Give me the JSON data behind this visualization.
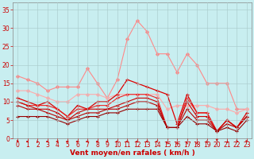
{
  "x": [
    0,
    1,
    2,
    3,
    4,
    5,
    6,
    7,
    8,
    9,
    10,
    11,
    12,
    13,
    14,
    15,
    16,
    17,
    18,
    19,
    20,
    21,
    22,
    23
  ],
  "series": [
    {
      "color": "#ff8888",
      "marker": "D",
      "markersize": 2.0,
      "linewidth": 0.8,
      "y": [
        17,
        16,
        15,
        13,
        14,
        14,
        14,
        19,
        15,
        11,
        16,
        27,
        32,
        29,
        23,
        23,
        18,
        23,
        20,
        15,
        15,
        15,
        8,
        8
      ]
    },
    {
      "color": "#ffaaaa",
      "marker": "D",
      "markersize": 2.0,
      "linewidth": 0.8,
      "y": [
        13,
        13,
        12,
        11,
        10,
        10,
        12,
        12,
        12,
        11,
        12,
        12,
        12,
        12,
        12,
        8,
        9,
        9,
        9,
        9,
        8,
        8,
        7,
        8
      ]
    },
    {
      "color": "#dd0000",
      "marker": "+",
      "markersize": 3.0,
      "linewidth": 0.9,
      "y": [
        11,
        10,
        9,
        10,
        8,
        6,
        9,
        8,
        10,
        10,
        12,
        16,
        15,
        14,
        13,
        12,
        4,
        12,
        7,
        7,
        2,
        5,
        3,
        7
      ]
    },
    {
      "color": "#ee2222",
      "marker": "+",
      "markersize": 3.0,
      "linewidth": 0.8,
      "y": [
        10,
        9,
        9,
        9,
        8,
        6,
        8,
        8,
        9,
        9,
        11,
        12,
        12,
        12,
        11,
        3,
        3,
        11,
        7,
        7,
        2,
        5,
        3,
        6
      ]
    },
    {
      "color": "#cc0000",
      "marker": "+",
      "markersize": 3.0,
      "linewidth": 0.8,
      "y": [
        10,
        9,
        8,
        8,
        7,
        5,
        7,
        8,
        8,
        8,
        9,
        10,
        11,
        11,
        10,
        3,
        3,
        10,
        6,
        6,
        2,
        5,
        3,
        6
      ]
    },
    {
      "color": "#bb0000",
      "marker": "+",
      "markersize": 3.0,
      "linewidth": 0.8,
      "y": [
        9,
        8,
        8,
        7,
        6,
        5,
        6,
        7,
        7,
        8,
        8,
        9,
        10,
        10,
        9,
        3,
        3,
        8,
        5,
        5,
        2,
        4,
        3,
        6
      ]
    },
    {
      "color": "#990000",
      "marker": "+",
      "markersize": 3.0,
      "linewidth": 0.8,
      "y": [
        6,
        6,
        6,
        6,
        5,
        4,
        5,
        6,
        6,
        7,
        7,
        8,
        8,
        8,
        8,
        3,
        3,
        6,
        4,
        4,
        2,
        3,
        2,
        5
      ]
    }
  ],
  "arrow_angles": [
    225,
    270,
    315,
    270,
    270,
    270,
    270,
    270,
    270,
    270,
    270,
    270,
    270,
    270,
    270,
    180,
    180,
    180,
    180,
    315,
    0,
    45,
    90,
    225
  ],
  "xlabel": "Vent moyen/en rafales ( km/h )",
  "xlim": [
    -0.5,
    23.5
  ],
  "ylim": [
    0,
    37
  ],
  "yticks": [
    0,
    5,
    10,
    15,
    20,
    25,
    30,
    35
  ],
  "xticks": [
    0,
    1,
    2,
    3,
    4,
    5,
    6,
    7,
    8,
    9,
    10,
    11,
    12,
    13,
    14,
    15,
    16,
    17,
    18,
    19,
    20,
    21,
    22,
    23
  ],
  "background_color": "#c8eef0",
  "grid_color": "#aacccc",
  "xlabel_color": "#cc0000",
  "xlabel_fontsize": 6.5,
  "ytick_color": "#cc0000",
  "xtick_color": "#cc0000",
  "tick_fontsize": 5.5,
  "arrow_color": "#cc0000"
}
